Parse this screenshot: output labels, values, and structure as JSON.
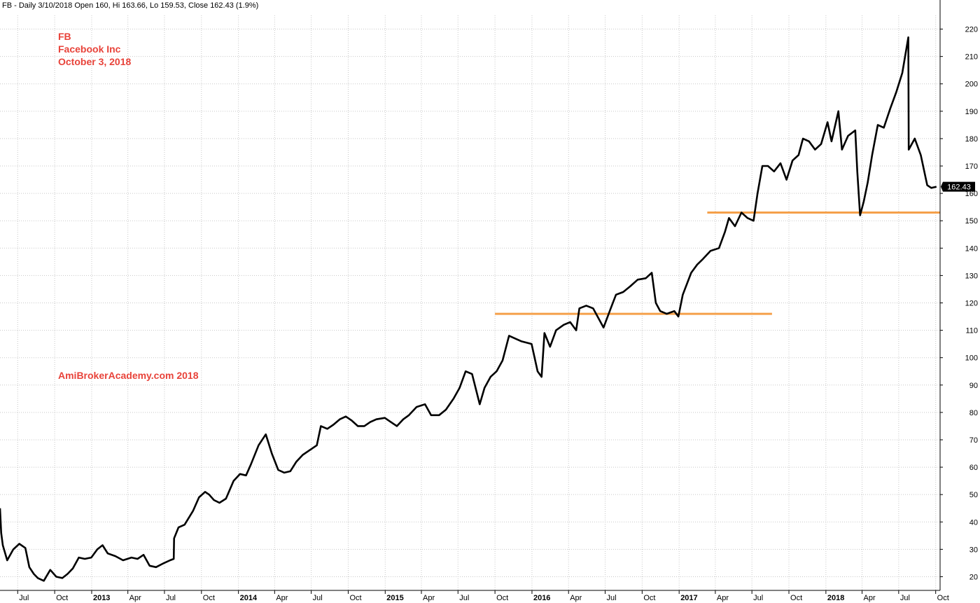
{
  "header": {
    "text": "FB - Daily 3/10/2018 Open 160, Hi 163.66, Lo 159.53, Close 162.43 (1.9%)"
  },
  "annotations": {
    "ticker": "FB",
    "company": "Facebook Inc",
    "date": "October 3, 2018",
    "watermark": "AmiBrokerAcademy.com  2018",
    "color": "#e8433a"
  },
  "chart_data": {
    "type": "line",
    "series_color": "#000000",
    "grid": true,
    "grid_color": "#c8c8c8",
    "y_axis_position": "right",
    "ylim": [
      15,
      225
    ],
    "yticks": [
      20,
      30,
      40,
      50,
      60,
      70,
      80,
      90,
      100,
      110,
      120,
      130,
      140,
      150,
      160,
      170,
      180,
      190,
      200,
      210,
      220
    ],
    "xlim": [
      "2012-05-18",
      "2018-10-12"
    ],
    "xticks": [
      {
        "date": "2012-07-01",
        "label": "Jul",
        "year": false
      },
      {
        "date": "2012-10-01",
        "label": "Oct",
        "year": false
      },
      {
        "date": "2013-01-01",
        "label": "2013",
        "year": true
      },
      {
        "date": "2013-04-01",
        "label": "Apr",
        "year": false
      },
      {
        "date": "2013-07-01",
        "label": "Jul",
        "year": false
      },
      {
        "date": "2013-10-01",
        "label": "Oct",
        "year": false
      },
      {
        "date": "2014-01-01",
        "label": "2014",
        "year": true
      },
      {
        "date": "2014-04-01",
        "label": "Apr",
        "year": false
      },
      {
        "date": "2014-07-01",
        "label": "Jul",
        "year": false
      },
      {
        "date": "2014-10-01",
        "label": "Oct",
        "year": false
      },
      {
        "date": "2015-01-01",
        "label": "2015",
        "year": true
      },
      {
        "date": "2015-04-01",
        "label": "Apr",
        "year": false
      },
      {
        "date": "2015-07-01",
        "label": "Jul",
        "year": false
      },
      {
        "date": "2015-10-01",
        "label": "Oct",
        "year": false
      },
      {
        "date": "2016-01-01",
        "label": "2016",
        "year": true
      },
      {
        "date": "2016-04-01",
        "label": "Apr",
        "year": false
      },
      {
        "date": "2016-07-01",
        "label": "Jul",
        "year": false
      },
      {
        "date": "2016-10-01",
        "label": "Oct",
        "year": false
      },
      {
        "date": "2017-01-01",
        "label": "2017",
        "year": true
      },
      {
        "date": "2017-04-01",
        "label": "Apr",
        "year": false
      },
      {
        "date": "2017-07-01",
        "label": "Jul",
        "year": false
      },
      {
        "date": "2017-10-01",
        "label": "Oct",
        "year": false
      },
      {
        "date": "2018-01-01",
        "label": "2018",
        "year": true
      },
      {
        "date": "2018-04-01",
        "label": "Apr",
        "year": false
      },
      {
        "date": "2018-07-01",
        "label": "Jul",
        "year": false
      },
      {
        "date": "2018-10-01",
        "label": "Oct",
        "year": false
      }
    ],
    "series": [
      {
        "points": [
          [
            "2012-05-18",
            45.0
          ],
          [
            "2012-05-21",
            36.0
          ],
          [
            "2012-05-25",
            31.5
          ],
          [
            "2012-06-05",
            26.0
          ],
          [
            "2012-06-20",
            30.0
          ],
          [
            "2012-07-05",
            32.0
          ],
          [
            "2012-07-20",
            30.5
          ],
          [
            "2012-07-30",
            23.5
          ],
          [
            "2012-08-10",
            21.0
          ],
          [
            "2012-08-20",
            19.5
          ],
          [
            "2012-09-04",
            18.5
          ],
          [
            "2012-09-20",
            22.5
          ],
          [
            "2012-10-05",
            20.0
          ],
          [
            "2012-10-20",
            19.5
          ],
          [
            "2012-11-02",
            21.0
          ],
          [
            "2012-11-15",
            23.0
          ],
          [
            "2012-11-30",
            27.0
          ],
          [
            "2012-12-15",
            26.5
          ],
          [
            "2012-12-31",
            27.0
          ],
          [
            "2013-01-15",
            30.0
          ],
          [
            "2013-01-28",
            31.5
          ],
          [
            "2013-02-10",
            28.5
          ],
          [
            "2013-03-01",
            27.5
          ],
          [
            "2013-03-20",
            26.0
          ],
          [
            "2013-04-10",
            27.0
          ],
          [
            "2013-04-25",
            26.5
          ],
          [
            "2013-05-10",
            28.0
          ],
          [
            "2013-05-25",
            24.0
          ],
          [
            "2013-06-10",
            23.5
          ],
          [
            "2013-06-30",
            25.0
          ],
          [
            "2013-07-15",
            26.0
          ],
          [
            "2013-07-24",
            26.5
          ],
          [
            "2013-07-25",
            34.0
          ],
          [
            "2013-08-05",
            38.0
          ],
          [
            "2013-08-20",
            39.0
          ],
          [
            "2013-09-10",
            44.0
          ],
          [
            "2013-09-25",
            49.0
          ],
          [
            "2013-10-10",
            51.0
          ],
          [
            "2013-10-20",
            50.0
          ],
          [
            "2013-11-01",
            48.0
          ],
          [
            "2013-11-15",
            47.0
          ],
          [
            "2013-12-01",
            48.5
          ],
          [
            "2013-12-20",
            55.0
          ],
          [
            "2014-01-05",
            57.5
          ],
          [
            "2014-01-20",
            57.0
          ],
          [
            "2014-02-01",
            61.0
          ],
          [
            "2014-02-20",
            68.0
          ],
          [
            "2014-03-10",
            72.0
          ],
          [
            "2014-03-25",
            65.0
          ],
          [
            "2014-04-10",
            59.0
          ],
          [
            "2014-04-25",
            58.0
          ],
          [
            "2014-05-10",
            58.5
          ],
          [
            "2014-05-25",
            62.0
          ],
          [
            "2014-06-10",
            64.5
          ],
          [
            "2014-06-25",
            66.0
          ],
          [
            "2014-07-15",
            68.0
          ],
          [
            "2014-07-25",
            75.0
          ],
          [
            "2014-08-10",
            74.0
          ],
          [
            "2014-08-25",
            75.5
          ],
          [
            "2014-09-10",
            77.5
          ],
          [
            "2014-09-25",
            78.5
          ],
          [
            "2014-10-10",
            77.0
          ],
          [
            "2014-10-25",
            75.0
          ],
          [
            "2014-11-10",
            75.0
          ],
          [
            "2014-11-25",
            76.5
          ],
          [
            "2014-12-10",
            77.5
          ],
          [
            "2014-12-31",
            78.0
          ],
          [
            "2015-01-15",
            76.5
          ],
          [
            "2015-01-30",
            75.0
          ],
          [
            "2015-02-15",
            77.5
          ],
          [
            "2015-03-01",
            79.0
          ],
          [
            "2015-03-20",
            82.0
          ],
          [
            "2015-04-10",
            83.0
          ],
          [
            "2015-04-25",
            79.0
          ],
          [
            "2015-05-15",
            79.0
          ],
          [
            "2015-06-01",
            81.0
          ],
          [
            "2015-06-20",
            85.0
          ],
          [
            "2015-07-05",
            89.0
          ],
          [
            "2015-07-20",
            95.0
          ],
          [
            "2015-08-05",
            94.0
          ],
          [
            "2015-08-24",
            83.0
          ],
          [
            "2015-09-05",
            89.0
          ],
          [
            "2015-09-20",
            93.0
          ],
          [
            "2015-10-05",
            95.0
          ],
          [
            "2015-10-20",
            99.0
          ],
          [
            "2015-11-05",
            108.0
          ],
          [
            "2015-11-20",
            107.0
          ],
          [
            "2015-12-05",
            106.0
          ],
          [
            "2015-12-31",
            105.0
          ],
          [
            "2016-01-15",
            95.0
          ],
          [
            "2016-01-25",
            93.0
          ],
          [
            "2016-02-01",
            109.0
          ],
          [
            "2016-02-15",
            104.0
          ],
          [
            "2016-03-01",
            110.0
          ],
          [
            "2016-03-20",
            112.0
          ],
          [
            "2016-04-05",
            113.0
          ],
          [
            "2016-04-20",
            110.0
          ],
          [
            "2016-04-28",
            118.0
          ],
          [
            "2016-05-15",
            119.0
          ],
          [
            "2016-06-01",
            118.0
          ],
          [
            "2016-06-27",
            111.0
          ],
          [
            "2016-07-15",
            118.0
          ],
          [
            "2016-07-28",
            123.0
          ],
          [
            "2016-08-15",
            124.0
          ],
          [
            "2016-09-01",
            126.0
          ],
          [
            "2016-09-20",
            128.5
          ],
          [
            "2016-10-10",
            129.0
          ],
          [
            "2016-10-25",
            131.0
          ],
          [
            "2016-11-04",
            120.0
          ],
          [
            "2016-11-15",
            117.0
          ],
          [
            "2016-12-01",
            116.0
          ],
          [
            "2016-12-20",
            117.0
          ],
          [
            "2016-12-30",
            115.0
          ],
          [
            "2017-01-10",
            123.0
          ],
          [
            "2017-01-31",
            131.0
          ],
          [
            "2017-02-15",
            134.0
          ],
          [
            "2017-03-01",
            136.0
          ],
          [
            "2017-03-20",
            139.0
          ],
          [
            "2017-04-10",
            140.0
          ],
          [
            "2017-04-25",
            146.0
          ],
          [
            "2017-05-05",
            151.0
          ],
          [
            "2017-05-20",
            148.0
          ],
          [
            "2017-06-05",
            153.0
          ],
          [
            "2017-06-20",
            151.0
          ],
          [
            "2017-07-05",
            150.0
          ],
          [
            "2017-07-15",
            160.0
          ],
          [
            "2017-07-27",
            170.0
          ],
          [
            "2017-08-10",
            170.0
          ],
          [
            "2017-08-25",
            168.0
          ],
          [
            "2017-09-10",
            171.0
          ],
          [
            "2017-09-25",
            165.0
          ],
          [
            "2017-10-10",
            172.0
          ],
          [
            "2017-10-25",
            174.0
          ],
          [
            "2017-11-05",
            180.0
          ],
          [
            "2017-11-20",
            179.0
          ],
          [
            "2017-12-05",
            176.0
          ],
          [
            "2017-12-20",
            178.0
          ],
          [
            "2018-01-05",
            186.0
          ],
          [
            "2018-01-15",
            179.0
          ],
          [
            "2018-02-01",
            190.0
          ],
          [
            "2018-02-10",
            176.0
          ],
          [
            "2018-02-25",
            181.0
          ],
          [
            "2018-03-15",
            183.0
          ],
          [
            "2018-03-20",
            168.0
          ],
          [
            "2018-03-27",
            152.0
          ],
          [
            "2018-04-05",
            157.0
          ],
          [
            "2018-04-15",
            164.0
          ],
          [
            "2018-04-26",
            174.0
          ],
          [
            "2018-05-10",
            185.0
          ],
          [
            "2018-05-25",
            184.0
          ],
          [
            "2018-06-10",
            191.0
          ],
          [
            "2018-06-25",
            197.0
          ],
          [
            "2018-07-10",
            204.0
          ],
          [
            "2018-07-25",
            217.0
          ],
          [
            "2018-07-26",
            176.0
          ],
          [
            "2018-08-10",
            180.0
          ],
          [
            "2018-08-25",
            174.0
          ],
          [
            "2018-09-10",
            163.0
          ],
          [
            "2018-09-20",
            162.0
          ],
          [
            "2018-10-03",
            162.43
          ]
        ]
      }
    ],
    "last_value_label": "162.43",
    "horizontal_lines": [
      {
        "y": 116,
        "from": "2015-10-01",
        "to": "2017-08-20",
        "color": "#f5a04a"
      },
      {
        "y": 153,
        "from": "2017-03-12",
        "to": "2018-10-12",
        "color": "#f5a04a"
      }
    ]
  }
}
